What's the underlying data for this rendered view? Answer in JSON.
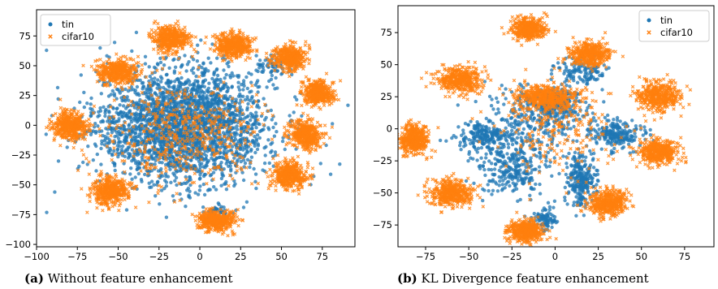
{
  "colors": {
    "tin": "#1f77b4",
    "cifar10": "#ff7f0e"
  },
  "captions": [
    {
      "tag": "(a)",
      "text": "Without feature enhancement"
    },
    {
      "tag": "(b)",
      "text": "KL Divergence feature enhancement"
    }
  ],
  "chart_data": [
    {
      "type": "scatter",
      "title": "",
      "xlabel": "",
      "ylabel": "",
      "xlim": [
        -100,
        95
      ],
      "ylim": [
        -102,
        97
      ],
      "xticks": [
        -100,
        -75,
        -50,
        -25,
        0,
        25,
        50,
        75
      ],
      "yticks": [
        -100,
        -75,
        -50,
        -25,
        0,
        25,
        50,
        75
      ],
      "grid": false,
      "legend_position": "top-left",
      "series": [
        {
          "name": "tin",
          "marker": "circle",
          "color": "#1f77b4",
          "clusters": [
            {
              "center": [
                -10,
                0
              ],
              "spread": [
                38,
                34
              ],
              "count": 2600
            },
            {
              "center": [
                10,
                -75
              ],
              "spread": [
                6,
                6
              ],
              "count": 60
            },
            {
              "center": [
                45,
                50
              ],
              "spread": [
                8,
                6
              ],
              "count": 60
            }
          ]
        },
        {
          "name": "cifar10",
          "marker": "x",
          "color": "#ff7f0e",
          "clusters": [
            {
              "center": [
                -18,
                73
              ],
              "spread": [
                8,
                7
              ],
              "count": 420
            },
            {
              "center": [
                -50,
                45
              ],
              "spread": [
                9,
                7
              ],
              "count": 420
            },
            {
              "center": [
                20,
                67
              ],
              "spread": [
                8,
                7
              ],
              "count": 420
            },
            {
              "center": [
                55,
                57
              ],
              "spread": [
                7,
                7
              ],
              "count": 420
            },
            {
              "center": [
                72,
                27
              ],
              "spread": [
                7,
                7
              ],
              "count": 420
            },
            {
              "center": [
                -80,
                0
              ],
              "spread": [
                7,
                8
              ],
              "count": 420
            },
            {
              "center": [
                65,
                -8
              ],
              "spread": [
                7,
                8
              ],
              "count": 420
            },
            {
              "center": [
                55,
                -42
              ],
              "spread": [
                7,
                8
              ],
              "count": 420
            },
            {
              "center": [
                -55,
                -55
              ],
              "spread": [
                8,
                8
              ],
              "count": 420
            },
            {
              "center": [
                10,
                -80
              ],
              "spread": [
                8,
                6
              ],
              "count": 420
            },
            {
              "center": [
                -10,
                -10
              ],
              "spread": [
                35,
                32
              ],
              "count": 500
            }
          ]
        }
      ]
    },
    {
      "type": "scatter",
      "title": "",
      "xlabel": "",
      "ylabel": "",
      "xlim": [
        -91,
        92
      ],
      "ylim": [
        -92,
        96
      ],
      "xticks": [
        -75,
        -50,
        -25,
        0,
        25,
        50,
        75
      ],
      "yticks": [
        -75,
        -50,
        -25,
        0,
        25,
        50,
        75
      ],
      "grid": false,
      "legend_position": "top-right",
      "series": [
        {
          "name": "tin",
          "marker": "circle",
          "color": "#1f77b4",
          "clusters": [
            {
              "center": [
                0,
                20
              ],
              "spread": [
                8,
                8
              ],
              "count": 220
            },
            {
              "center": [
                -25,
                -30
              ],
              "spread": [
                15,
                15
              ],
              "count": 280
            },
            {
              "center": [
                15,
                -40
              ],
              "spread": [
                6,
                15
              ],
              "count": 260
            },
            {
              "center": [
                35,
                -5
              ],
              "spread": [
                10,
                8
              ],
              "count": 220
            },
            {
              "center": [
                -40,
                -5
              ],
              "spread": [
                12,
                8
              ],
              "count": 200
            },
            {
              "center": [
                -5,
                -70
              ],
              "spread": [
                6,
                6
              ],
              "count": 90
            },
            {
              "center": [
                15,
                45
              ],
              "spread": [
                10,
                8
              ],
              "count": 120
            },
            {
              "center": [
                -10,
                10
              ],
              "spread": [
                20,
                20
              ],
              "count": 300
            }
          ]
        },
        {
          "name": "cifar10",
          "marker": "x",
          "color": "#ff7f0e",
          "clusters": [
            {
              "center": [
                -15,
                78
              ],
              "spread": [
                7,
                6
              ],
              "count": 420
            },
            {
              "center": [
                20,
                58
              ],
              "spread": [
                8,
                7
              ],
              "count": 420
            },
            {
              "center": [
                -55,
                38
              ],
              "spread": [
                9,
                7
              ],
              "count": 420
            },
            {
              "center": [
                -5,
                25
              ],
              "spread": [
                12,
                7
              ],
              "count": 420
            },
            {
              "center": [
                60,
                25
              ],
              "spread": [
                9,
                8
              ],
              "count": 420
            },
            {
              "center": [
                -82,
                -8
              ],
              "spread": [
                6,
                8
              ],
              "count": 420
            },
            {
              "center": [
                60,
                -18
              ],
              "spread": [
                8,
                7
              ],
              "count": 420
            },
            {
              "center": [
                -60,
                -50
              ],
              "spread": [
                9,
                7
              ],
              "count": 420
            },
            {
              "center": [
                -17,
                -80
              ],
              "spread": [
                7,
                6
              ],
              "count": 420
            },
            {
              "center": [
                30,
                -58
              ],
              "spread": [
                8,
                7
              ],
              "count": 420
            },
            {
              "center": [
                0,
                0
              ],
              "spread": [
                25,
                25
              ],
              "count": 250
            }
          ]
        }
      ]
    }
  ]
}
